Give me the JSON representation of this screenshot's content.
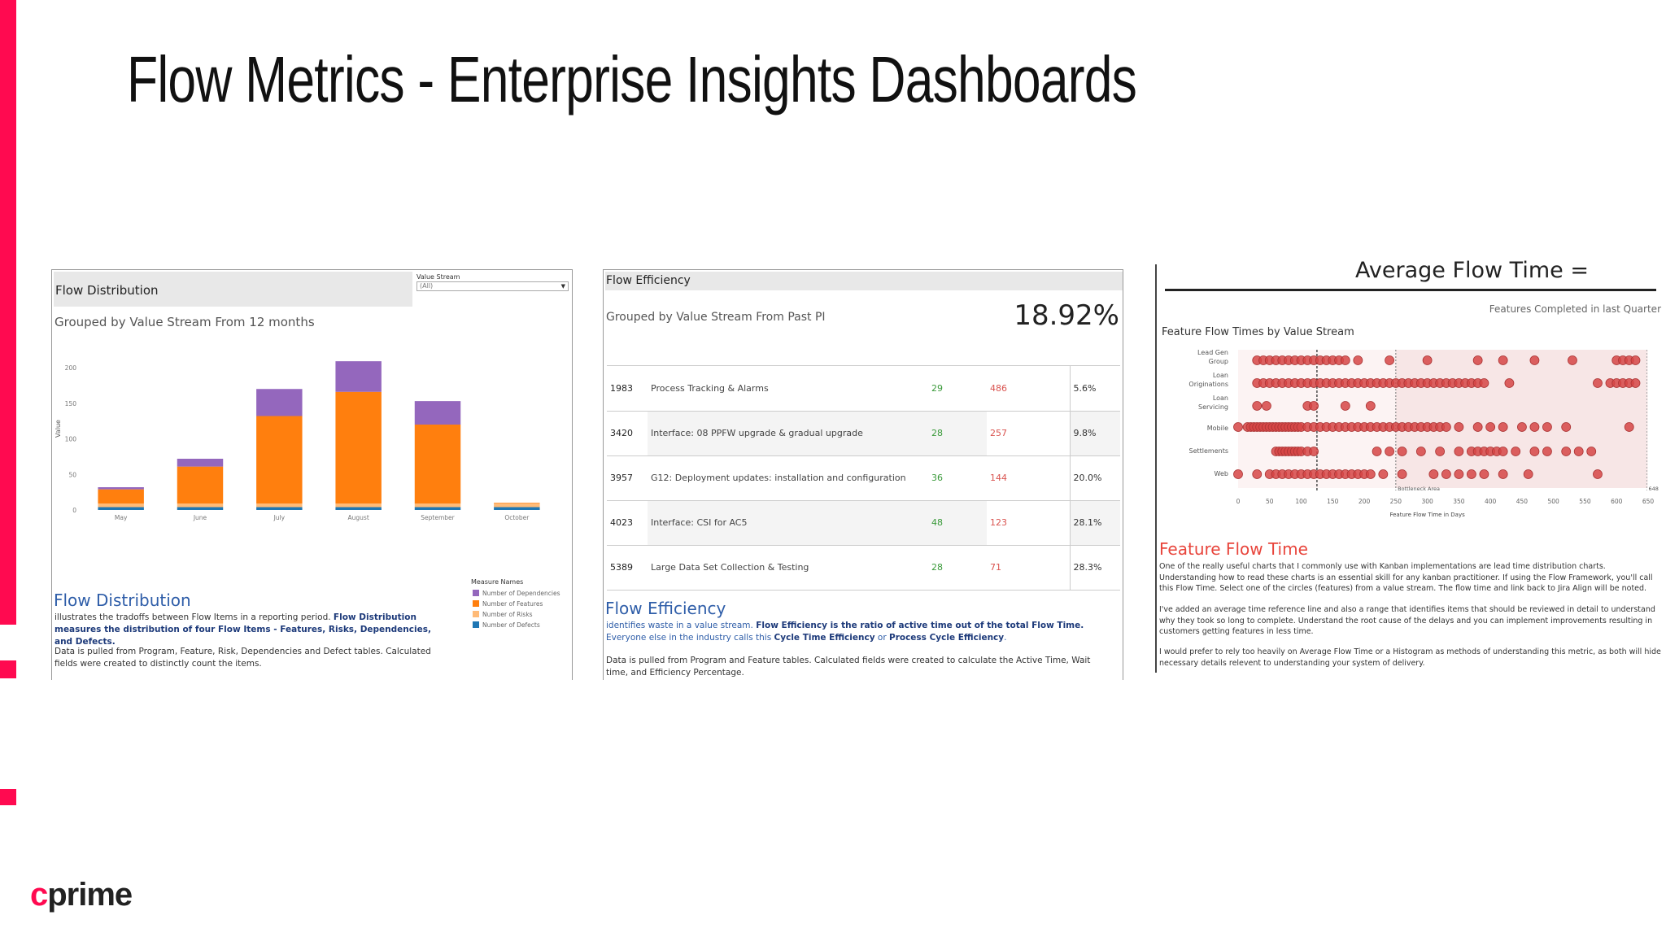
{
  "slide": {
    "title": "Flow Metrics - Enterprise Insights Dashboards",
    "logo_c": "c",
    "logo_rest": "prime"
  },
  "colors": {
    "accent": "#ff0a50",
    "purple": "#9467bd",
    "orange": "#ff7f0e",
    "peach": "#ffbb78",
    "blue": "#1f77b4",
    "dot": "#d64545"
  },
  "panel1": {
    "header": "Flow Distribution",
    "filter_label": "Value Stream",
    "filter_value": "(All)",
    "subtitle": "Grouped by Value Stream From 12 months",
    "y_axis_label": "Value",
    "legend_title": "Measure Names",
    "heading": "Flow Distribution",
    "desc1_a": "illustrates the tradoffs between Flow Items in a reporting period.",
    "desc1_b": "Flow Distribution measures the distribution of four Flow Items - Features, Risks, Dependencies, and Defects.",
    "desc2": "Data is pulled from Program, Feature, Risk, Dependencies and Defect tables. Calculated fields were created to distinctly count the items."
  },
  "chart_data": {
    "type": "bar",
    "stacked": true,
    "categories": [
      "May",
      "June",
      "July",
      "August",
      "September",
      "October"
    ],
    "series": [
      {
        "name": "Number of Dependencies",
        "color": "#9467bd",
        "values": [
          3,
          11,
          38,
          43,
          33,
          0
        ]
      },
      {
        "name": "Number of Features",
        "color": "#ff7f0e",
        "values": [
          20,
          52,
          123,
          157,
          111,
          1
        ]
      },
      {
        "name": "Number of Risks",
        "color": "#ffbb78",
        "values": [
          5,
          5,
          5,
          5,
          5,
          5
        ]
      },
      {
        "name": "Number of Defects",
        "color": "#1f77b4",
        "values": [
          4,
          4,
          4,
          4,
          4,
          4
        ]
      }
    ],
    "ylabel": "Value",
    "yticks": [
      0,
      50,
      100,
      150,
      200
    ],
    "ylim": [
      0,
      240
    ],
    "legend": "bottom-right"
  },
  "panel2": {
    "header": "Flow Efficiency",
    "subtitle": "Grouped by Value Stream From Past PI",
    "kpi": "18.92%",
    "rows": [
      {
        "id": "1983",
        "name": "Process Tracking & Alarms",
        "active": "29",
        "wait": "486",
        "pct": "5.6%"
      },
      {
        "id": "3420",
        "name": "Interface: 08 PPFW upgrade & gradual upgrade",
        "active": "28",
        "wait": "257",
        "pct": "9.8%"
      },
      {
        "id": "3957",
        "name": "G12: Deployment updates: installation and configuration",
        "active": "36",
        "wait": "144",
        "pct": "20.0%"
      },
      {
        "id": "4023",
        "name": "Interface: CSI for AC5",
        "active": "48",
        "wait": "123",
        "pct": "28.1%"
      },
      {
        "id": "5389",
        "name": "Large Data Set Collection & Testing",
        "active": "28",
        "wait": "71",
        "pct": "28.3%"
      }
    ],
    "heading": "Flow Efficiency",
    "desc1_a": "identifies waste in a value stream.",
    "desc1_b": "Flow Efficiency is the ratio of active time out of the total Flow Time.",
    "desc1_c": "Everyone else in the industry calls this",
    "desc1_d": "Cycle Time Efficiency",
    "desc1_e": "or",
    "desc1_f": "Process Cycle Efficiency",
    "desc2": "Data is pulled from Program and Feature tables. Calculated fields were created to calculate the Active Time, Wait time, and Efficiency Percentage."
  },
  "panel3": {
    "top_title": "Average Flow Time =",
    "completed": "Features Completed in last Quarter",
    "subtitle": "Feature Flow Times by Value Stream",
    "streams": [
      "Lead Gen Group",
      "Loan Originations",
      "Loan Servicing",
      "Mobile",
      "Settlements",
      "Web"
    ],
    "xticks": [
      "0",
      "50",
      "100",
      "150",
      "200",
      "250",
      "300",
      "350",
      "400",
      "450",
      "500",
      "550",
      "600",
      "650"
    ],
    "xlabel": "Feature Flow Time in Days",
    "bottleneck": "Bottleneck Area",
    "max_label": "648",
    "heading": "Feature Flow Time",
    "desc1": "One of the really useful charts that I commonly use with Kanban implementations are lead time distribution charts. Understanding how to read these charts is an essential skill for any kanban practitioner. If using the Flow Framework, you'll call this Flow Time. Select one of the circles (features) from a value stream. The flow time and link back to Jira Align will be noted.",
    "desc2": "I've added an average time reference line and also a range that identifies items that should be reviewed in detail to understand why they took so long to complete. Understand the root cause of the delays and you can implement improvements resulting in customers getting features in less time.",
    "desc3": "I would prefer to rely too heavily on Average Flow Time or a Histogram as methods of understanding this metric, as both will hide necessary details relevent to understanding your system of delivery."
  }
}
